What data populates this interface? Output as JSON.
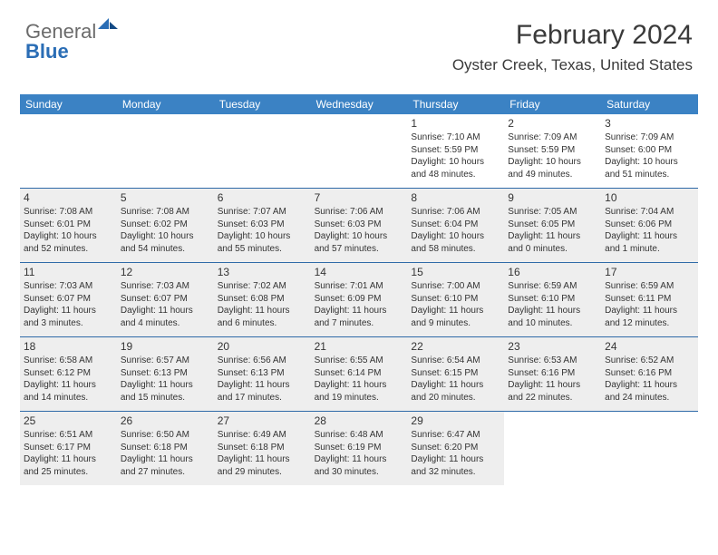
{
  "logo": {
    "part1": "General",
    "part2": "Blue"
  },
  "title": {
    "month": "February 2024",
    "location": "Oyster Creek, Texas, United States"
  },
  "colors": {
    "header_bg": "#3b82c4",
    "header_text": "#ffffff",
    "shade_bg": "#eeeeee",
    "border": "#2f6aa8",
    "logo_gray": "#6b6b6b",
    "logo_blue": "#2a6db5",
    "text": "#333333"
  },
  "dayNames": [
    "Sunday",
    "Monday",
    "Tuesday",
    "Wednesday",
    "Thursday",
    "Friday",
    "Saturday"
  ],
  "weeks": [
    [
      {
        "day": "",
        "sunrise": "",
        "sunset": "",
        "daylight1": "",
        "daylight2": "",
        "shade": false
      },
      {
        "day": "",
        "sunrise": "",
        "sunset": "",
        "daylight1": "",
        "daylight2": "",
        "shade": false
      },
      {
        "day": "",
        "sunrise": "",
        "sunset": "",
        "daylight1": "",
        "daylight2": "",
        "shade": false
      },
      {
        "day": "",
        "sunrise": "",
        "sunset": "",
        "daylight1": "",
        "daylight2": "",
        "shade": false
      },
      {
        "day": "1",
        "sunrise": "Sunrise: 7:10 AM",
        "sunset": "Sunset: 5:59 PM",
        "daylight1": "Daylight: 10 hours",
        "daylight2": "and 48 minutes.",
        "shade": false
      },
      {
        "day": "2",
        "sunrise": "Sunrise: 7:09 AM",
        "sunset": "Sunset: 5:59 PM",
        "daylight1": "Daylight: 10 hours",
        "daylight2": "and 49 minutes.",
        "shade": false
      },
      {
        "day": "3",
        "sunrise": "Sunrise: 7:09 AM",
        "sunset": "Sunset: 6:00 PM",
        "daylight1": "Daylight: 10 hours",
        "daylight2": "and 51 minutes.",
        "shade": false
      }
    ],
    [
      {
        "day": "4",
        "sunrise": "Sunrise: 7:08 AM",
        "sunset": "Sunset: 6:01 PM",
        "daylight1": "Daylight: 10 hours",
        "daylight2": "and 52 minutes.",
        "shade": true
      },
      {
        "day": "5",
        "sunrise": "Sunrise: 7:08 AM",
        "sunset": "Sunset: 6:02 PM",
        "daylight1": "Daylight: 10 hours",
        "daylight2": "and 54 minutes.",
        "shade": true
      },
      {
        "day": "6",
        "sunrise": "Sunrise: 7:07 AM",
        "sunset": "Sunset: 6:03 PM",
        "daylight1": "Daylight: 10 hours",
        "daylight2": "and 55 minutes.",
        "shade": true
      },
      {
        "day": "7",
        "sunrise": "Sunrise: 7:06 AM",
        "sunset": "Sunset: 6:03 PM",
        "daylight1": "Daylight: 10 hours",
        "daylight2": "and 57 minutes.",
        "shade": true
      },
      {
        "day": "8",
        "sunrise": "Sunrise: 7:06 AM",
        "sunset": "Sunset: 6:04 PM",
        "daylight1": "Daylight: 10 hours",
        "daylight2": "and 58 minutes.",
        "shade": true
      },
      {
        "day": "9",
        "sunrise": "Sunrise: 7:05 AM",
        "sunset": "Sunset: 6:05 PM",
        "daylight1": "Daylight: 11 hours",
        "daylight2": "and 0 minutes.",
        "shade": true
      },
      {
        "day": "10",
        "sunrise": "Sunrise: 7:04 AM",
        "sunset": "Sunset: 6:06 PM",
        "daylight1": "Daylight: 11 hours",
        "daylight2": "and 1 minute.",
        "shade": true
      }
    ],
    [
      {
        "day": "11",
        "sunrise": "Sunrise: 7:03 AM",
        "sunset": "Sunset: 6:07 PM",
        "daylight1": "Daylight: 11 hours",
        "daylight2": "and 3 minutes.",
        "shade": true
      },
      {
        "day": "12",
        "sunrise": "Sunrise: 7:03 AM",
        "sunset": "Sunset: 6:07 PM",
        "daylight1": "Daylight: 11 hours",
        "daylight2": "and 4 minutes.",
        "shade": true
      },
      {
        "day": "13",
        "sunrise": "Sunrise: 7:02 AM",
        "sunset": "Sunset: 6:08 PM",
        "daylight1": "Daylight: 11 hours",
        "daylight2": "and 6 minutes.",
        "shade": true
      },
      {
        "day": "14",
        "sunrise": "Sunrise: 7:01 AM",
        "sunset": "Sunset: 6:09 PM",
        "daylight1": "Daylight: 11 hours",
        "daylight2": "and 7 minutes.",
        "shade": true
      },
      {
        "day": "15",
        "sunrise": "Sunrise: 7:00 AM",
        "sunset": "Sunset: 6:10 PM",
        "daylight1": "Daylight: 11 hours",
        "daylight2": "and 9 minutes.",
        "shade": true
      },
      {
        "day": "16",
        "sunrise": "Sunrise: 6:59 AM",
        "sunset": "Sunset: 6:10 PM",
        "daylight1": "Daylight: 11 hours",
        "daylight2": "and 10 minutes.",
        "shade": true
      },
      {
        "day": "17",
        "sunrise": "Sunrise: 6:59 AM",
        "sunset": "Sunset: 6:11 PM",
        "daylight1": "Daylight: 11 hours",
        "daylight2": "and 12 minutes.",
        "shade": true
      }
    ],
    [
      {
        "day": "18",
        "sunrise": "Sunrise: 6:58 AM",
        "sunset": "Sunset: 6:12 PM",
        "daylight1": "Daylight: 11 hours",
        "daylight2": "and 14 minutes.",
        "shade": true
      },
      {
        "day": "19",
        "sunrise": "Sunrise: 6:57 AM",
        "sunset": "Sunset: 6:13 PM",
        "daylight1": "Daylight: 11 hours",
        "daylight2": "and 15 minutes.",
        "shade": true
      },
      {
        "day": "20",
        "sunrise": "Sunrise: 6:56 AM",
        "sunset": "Sunset: 6:13 PM",
        "daylight1": "Daylight: 11 hours",
        "daylight2": "and 17 minutes.",
        "shade": true
      },
      {
        "day": "21",
        "sunrise": "Sunrise: 6:55 AM",
        "sunset": "Sunset: 6:14 PM",
        "daylight1": "Daylight: 11 hours",
        "daylight2": "and 19 minutes.",
        "shade": true
      },
      {
        "day": "22",
        "sunrise": "Sunrise: 6:54 AM",
        "sunset": "Sunset: 6:15 PM",
        "daylight1": "Daylight: 11 hours",
        "daylight2": "and 20 minutes.",
        "shade": true
      },
      {
        "day": "23",
        "sunrise": "Sunrise: 6:53 AM",
        "sunset": "Sunset: 6:16 PM",
        "daylight1": "Daylight: 11 hours",
        "daylight2": "and 22 minutes.",
        "shade": true
      },
      {
        "day": "24",
        "sunrise": "Sunrise: 6:52 AM",
        "sunset": "Sunset: 6:16 PM",
        "daylight1": "Daylight: 11 hours",
        "daylight2": "and 24 minutes.",
        "shade": true
      }
    ],
    [
      {
        "day": "25",
        "sunrise": "Sunrise: 6:51 AM",
        "sunset": "Sunset: 6:17 PM",
        "daylight1": "Daylight: 11 hours",
        "daylight2": "and 25 minutes.",
        "shade": true
      },
      {
        "day": "26",
        "sunrise": "Sunrise: 6:50 AM",
        "sunset": "Sunset: 6:18 PM",
        "daylight1": "Daylight: 11 hours",
        "daylight2": "and 27 minutes.",
        "shade": true
      },
      {
        "day": "27",
        "sunrise": "Sunrise: 6:49 AM",
        "sunset": "Sunset: 6:18 PM",
        "daylight1": "Daylight: 11 hours",
        "daylight2": "and 29 minutes.",
        "shade": true
      },
      {
        "day": "28",
        "sunrise": "Sunrise: 6:48 AM",
        "sunset": "Sunset: 6:19 PM",
        "daylight1": "Daylight: 11 hours",
        "daylight2": "and 30 minutes.",
        "shade": true
      },
      {
        "day": "29",
        "sunrise": "Sunrise: 6:47 AM",
        "sunset": "Sunset: 6:20 PM",
        "daylight1": "Daylight: 11 hours",
        "daylight2": "and 32 minutes.",
        "shade": true
      },
      {
        "day": "",
        "sunrise": "",
        "sunset": "",
        "daylight1": "",
        "daylight2": "",
        "shade": false
      },
      {
        "day": "",
        "sunrise": "",
        "sunset": "",
        "daylight1": "",
        "daylight2": "",
        "shade": false
      }
    ]
  ]
}
